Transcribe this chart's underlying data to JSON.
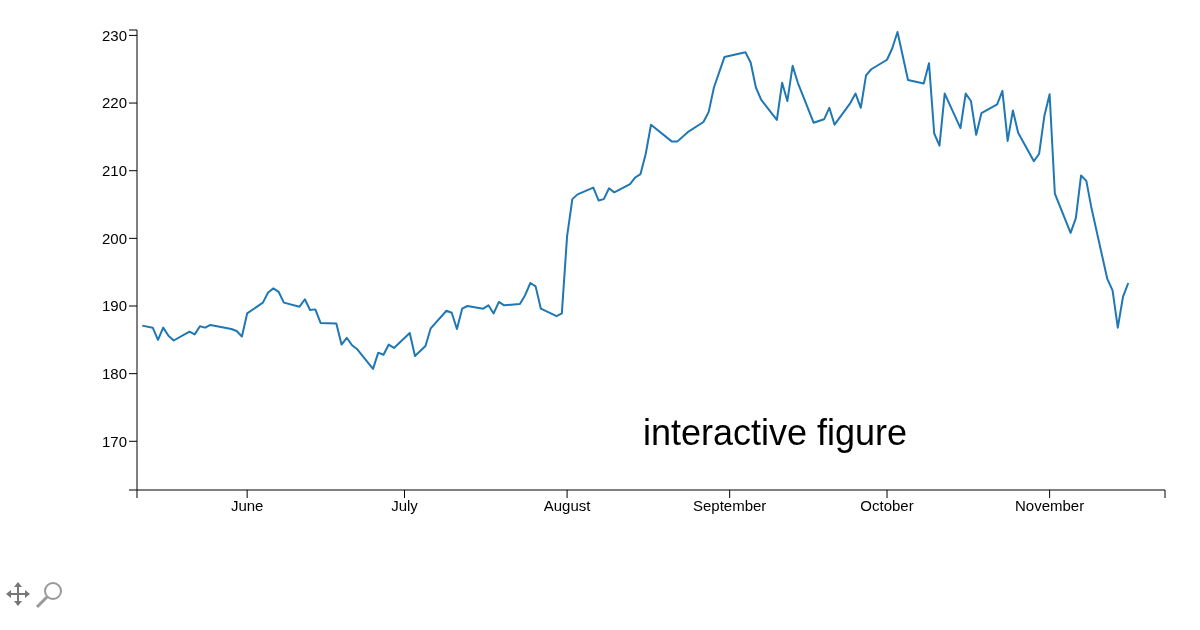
{
  "chart_data": {
    "type": "line",
    "color": "#1f77b4",
    "marker": "none",
    "line_style": "solid",
    "grid": false,
    "legend": false,
    "annotations": [
      "interactive figure"
    ],
    "xlim": [
      "--05-11",
      "--11-23"
    ],
    "xticks": [
      {
        "value": "--05-11",
        "label": null
      },
      {
        "value": "--06-01",
        "label": "June"
      },
      {
        "value": "--07-01",
        "label": "July"
      },
      {
        "value": "--08-01",
        "label": "August"
      },
      {
        "value": "--09-01",
        "label": "September"
      },
      {
        "value": "--10-01",
        "label": "October"
      },
      {
        "value": "--11-01",
        "label": "November"
      },
      {
        "value": "--11-23",
        "label": null
      }
    ],
    "ylim": [
      162.8,
      230.8
    ],
    "yticks": [
      {
        "value": 162.8,
        "label": null
      },
      170,
      180,
      190,
      200,
      210,
      220,
      230,
      {
        "value": 230.8,
        "label": null
      }
    ],
    "x": [
      "--05-12",
      "--05-14",
      "--05-15",
      "--05-16",
      "--05-17",
      "--05-18",
      "--05-21",
      "--05-22",
      "--05-23",
      "--05-24",
      "--05-25",
      "--05-29",
      "--05-30",
      "--05-31",
      "--06-01",
      "--06-04",
      "--06-05",
      "--06-06",
      "--06-07",
      "--06-08",
      "--06-11",
      "--06-12",
      "--06-13",
      "--06-14",
      "--06-15",
      "--06-18",
      "--06-19",
      "--06-20",
      "--06-21",
      "--06-22",
      "--06-25",
      "--06-26",
      "--06-27",
      "--06-28",
      "--06-29",
      "--07-02",
      "--07-03",
      "--07-05",
      "--07-06",
      "--07-09",
      "--07-10",
      "--07-11",
      "--07-12",
      "--07-13",
      "--07-16",
      "--07-17",
      "--07-18",
      "--07-19",
      "--07-20",
      "--07-23",
      "--07-24",
      "--07-25",
      "--07-26",
      "--07-27",
      "--07-30",
      "--07-31",
      "--08-01",
      "--08-02",
      "--08-03",
      "--08-06",
      "--08-07",
      "--08-08",
      "--08-09",
      "--08-10",
      "--08-13",
      "--08-14",
      "--08-15",
      "--08-16",
      "--08-17",
      "--08-21",
      "--08-22",
      "--08-24",
      "--08-27",
      "--08-28",
      "--08-29",
      "--08-31",
      "--09-04",
      "--09-05",
      "--09-06",
      "--09-07",
      "--09-10",
      "--09-11",
      "--09-12",
      "--09-13",
      "--09-14",
      "--09-17",
      "--09-19",
      "--09-20",
      "--09-21",
      "--09-24",
      "--09-25",
      "--09-26",
      "--09-27",
      "--09-28",
      "--10-01",
      "--10-02",
      "--10-03",
      "--10-05",
      "--10-08",
      "--10-09",
      "--10-10",
      "--10-11",
      "--10-12",
      "--10-15",
      "--10-16",
      "--10-17",
      "--10-18",
      "--10-19",
      "--10-22",
      "--10-23",
      "--10-24",
      "--10-25",
      "--10-26",
      "--10-29",
      "--10-30",
      "--10-31",
      "--11-01",
      "--11-02",
      "--11-05",
      "--11-06",
      "--11-07",
      "--11-08",
      "--11-09",
      "--11-12",
      "--11-13",
      "--11-14",
      "--11-15",
      "--11-16"
    ],
    "values": [
      187.1,
      186.8,
      185.0,
      186.8,
      185.6,
      184.9,
      186.2,
      185.8,
      187.0,
      186.8,
      187.2,
      186.6,
      186.3,
      185.5,
      188.9,
      190.5,
      192.0,
      192.6,
      192.1,
      190.5,
      189.9,
      191.0,
      189.4,
      189.5,
      187.5,
      187.4,
      184.3,
      185.3,
      184.2,
      183.6,
      180.7,
      183.1,
      182.8,
      184.3,
      183.8,
      186.0,
      182.6,
      184.1,
      186.7,
      189.3,
      189.0,
      186.6,
      189.6,
      190.0,
      189.6,
      190.1,
      188.9,
      190.6,
      190.1,
      190.3,
      191.6,
      193.4,
      192.9,
      189.6,
      188.5,
      188.9,
      200.3,
      205.8,
      206.5,
      207.5,
      205.6,
      205.8,
      207.4,
      206.8,
      208.0,
      209.0,
      209.5,
      212.5,
      216.8,
      214.3,
      214.3,
      215.7,
      217.2,
      218.7,
      222.3,
      226.8,
      227.5,
      226.0,
      222.3,
      220.5,
      217.5,
      223.0,
      220.3,
      225.5,
      223.0,
      217.1,
      217.6,
      219.3,
      216.8,
      220.0,
      221.4,
      219.3,
      224.1,
      225.0,
      226.4,
      228.1,
      230.5,
      223.4,
      222.9,
      225.9,
      215.5,
      213.7,
      221.4,
      216.3,
      221.4,
      220.3,
      215.3,
      218.5,
      219.8,
      221.8,
      214.4,
      218.9,
      215.6,
      211.4,
      212.5,
      218.1,
      221.3,
      206.6,
      200.8,
      203.0,
      209.3,
      208.5,
      204.4,
      194.0,
      192.3,
      186.8,
      191.4,
      193.4
    ]
  }
}
